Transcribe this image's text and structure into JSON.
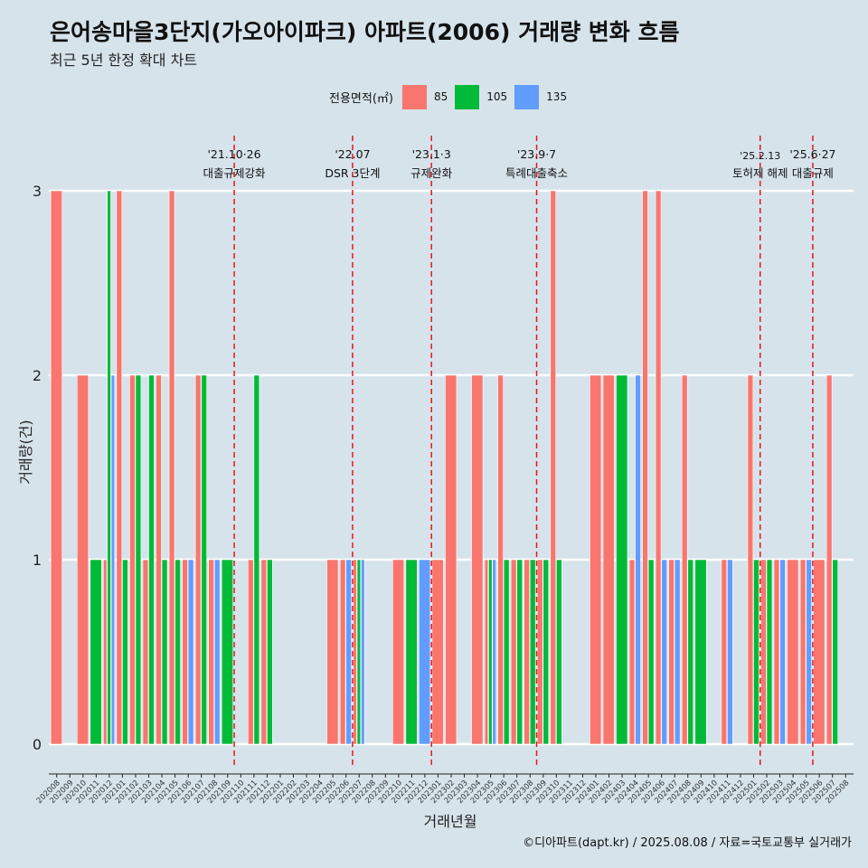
{
  "title": "은어송마을3단지(가오아이파크) 아파트(2006) 거래량 변화 흐름",
  "subtitle": "최근 5년 한정 확대 차트",
  "caption": "©디아파트(dapt.kr) / 2025.08.08 / 자료=국토교통부 실거래가",
  "legend": {
    "title": "전용면적(㎡)",
    "items": [
      {
        "label": "85",
        "color": "#f8766d"
      },
      {
        "label": "105",
        "color": "#00ba38"
      },
      {
        "label": "135",
        "color": "#619cff"
      }
    ]
  },
  "chart_data": {
    "type": "bar",
    "xlabel": "거래년월",
    "ylabel": "거래량(건)",
    "ylim": [
      0,
      3
    ],
    "yticks": [
      0,
      1,
      2,
      3
    ],
    "grid": "horizontal",
    "categories": [
      "202008",
      "202009",
      "202010",
      "202011",
      "202012",
      "202101",
      "202102",
      "202103",
      "202104",
      "202105",
      "202106",
      "202107",
      "202108",
      "202109",
      "202110",
      "202111",
      "202112",
      "202201",
      "202202",
      "202203",
      "202204",
      "202205",
      "202206",
      "202207",
      "202208",
      "202209",
      "202210",
      "202211",
      "202212",
      "202301",
      "202302",
      "202303",
      "202304",
      "202305",
      "202306",
      "202307",
      "202308",
      "202309",
      "202310",
      "202311",
      "202312",
      "202401",
      "202402",
      "202403",
      "202404",
      "202405",
      "202406",
      "202407",
      "202408",
      "202409",
      "202410",
      "202411",
      "202412",
      "202501",
      "202502",
      "202503",
      "202504",
      "202505",
      "202506",
      "202507",
      "202508"
    ],
    "series": [
      {
        "name": "85",
        "values": [
          3,
          0,
          2,
          0,
          1,
          3,
          2,
          1,
          2,
          3,
          1,
          2,
          1,
          0,
          0,
          1,
          1,
          0,
          0,
          0,
          0,
          1,
          1,
          1,
          0,
          0,
          1,
          0,
          0,
          1,
          2,
          0,
          2,
          1,
          2,
          1,
          1,
          1,
          3,
          0,
          0,
          2,
          2,
          0,
          1,
          3,
          3,
          1,
          2,
          0,
          0,
          1,
          0,
          2,
          1,
          1,
          1,
          1,
          1,
          2,
          0
        ]
      },
      {
        "name": "105",
        "values": [
          0,
          0,
          0,
          1,
          3,
          1,
          2,
          2,
          1,
          1,
          0,
          2,
          0,
          1,
          0,
          2,
          1,
          0,
          0,
          0,
          0,
          0,
          0,
          1,
          0,
          0,
          0,
          1,
          0,
          0,
          0,
          0,
          0,
          1,
          1,
          1,
          1,
          1,
          1,
          0,
          0,
          0,
          0,
          2,
          0,
          1,
          0,
          0,
          1,
          1,
          0,
          0,
          0,
          1,
          1,
          0,
          0,
          0,
          0,
          1,
          0
        ]
      },
      {
        "name": "135",
        "values": [
          0,
          0,
          0,
          0,
          2,
          0,
          0,
          0,
          0,
          0,
          1,
          0,
          1,
          0,
          0,
          0,
          0,
          0,
          0,
          0,
          0,
          0,
          1,
          1,
          0,
          0,
          0,
          0,
          1,
          0,
          0,
          0,
          0,
          1,
          0,
          0,
          0,
          0,
          0,
          0,
          0,
          0,
          0,
          0,
          2,
          0,
          1,
          1,
          0,
          0,
          0,
          1,
          0,
          0,
          0,
          1,
          0,
          1,
          0,
          0,
          0
        ]
      }
    ],
    "events": [
      {
        "date": "'21.10·26",
        "label": "대출규제강화",
        "month": "202110"
      },
      {
        "date": "'22.07",
        "label": "DSR 3단계",
        "month": "202207"
      },
      {
        "date": "'23.1·3",
        "label": "규제완화",
        "month": "202301"
      },
      {
        "date": "'23.9·7",
        "label": "특례대출축소",
        "month": "202309"
      },
      {
        "date": "'25.2.13",
        "label": "토허제 해제",
        "month": "202502"
      },
      {
        "date": "'25.6·27",
        "label": "대출규제",
        "month": "202506"
      }
    ]
  }
}
